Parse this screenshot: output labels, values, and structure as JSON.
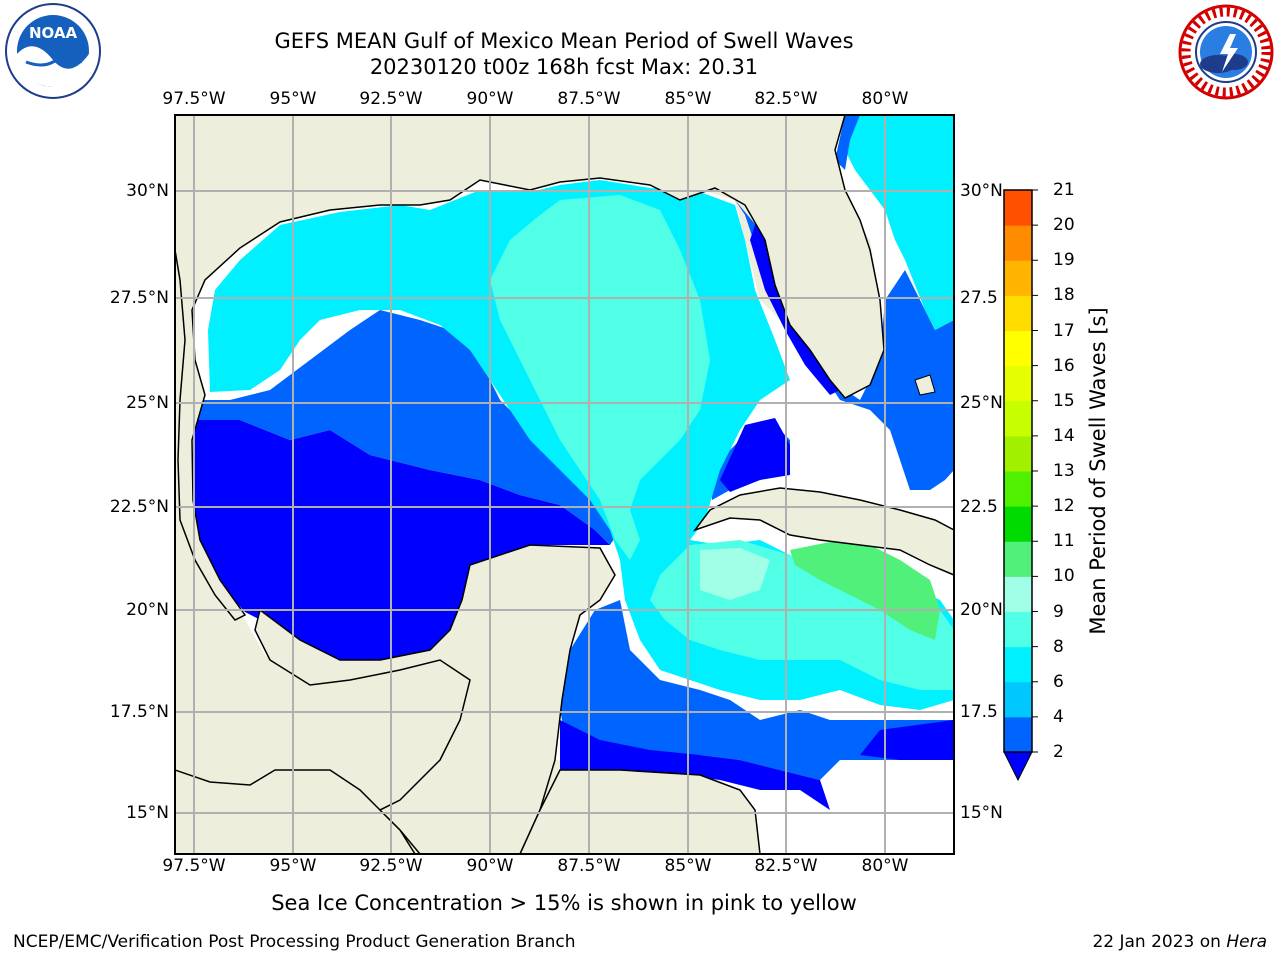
{
  "header": {
    "title_line1": "GEFS MEAN Gulf of Mexico Mean Period of Swell Waves",
    "title_line2": "20230120 t00z 168h fcst   Max: 20.31"
  },
  "map": {
    "lon_labels": [
      "97.5°W",
      "95°W",
      "92.5°W",
      "90°W",
      "87.5°W",
      "85°W",
      "82.5°W",
      "80°W"
    ],
    "lat_labels_left": [
      "30°N",
      "27.5°N",
      "25°N",
      "22.5°N",
      "20°N",
      "17.5°N",
      "15°N"
    ],
    "lat_labels_right": [
      "30°N",
      "27.5",
      "25°N",
      "22.5",
      "20°N",
      "17.5",
      "15°N"
    ],
    "land_color": "#eeeedd",
    "grid_color": "#b0b0b0"
  },
  "colorbar": {
    "title": "Mean Period of Swell Waves [s]",
    "levels": [
      "2",
      "4",
      "6",
      "8",
      "9",
      "10",
      "11",
      "12",
      "13",
      "14",
      "15",
      "16",
      "17",
      "18",
      "19",
      "20",
      "21"
    ],
    "colors": [
      "#0064ff",
      "#00c8ff",
      "#00f0ff",
      "#50ffe6",
      "#a0ffe6",
      "#50f07a",
      "#00dc00",
      "#50f000",
      "#a0f000",
      "#c8ff00",
      "#e6ff00",
      "#ffff00",
      "#ffdc00",
      "#ffb400",
      "#ff8c00",
      "#ff5000",
      "#ff2800",
      "#ff0000"
    ],
    "under_color": "#0000ff"
  },
  "footer": {
    "subtitle": "Sea Ice Concentration > 15% is shown in pink to yellow",
    "credit": "NCEP/EMC/Verification Post Processing Product Generation Branch",
    "date": "22 Jan 2023 on ",
    "host": "Hera"
  },
  "logos": {
    "noaa_text": "NOAA",
    "nws_text": "NATIONAL WEATHER SERVICE"
  }
}
